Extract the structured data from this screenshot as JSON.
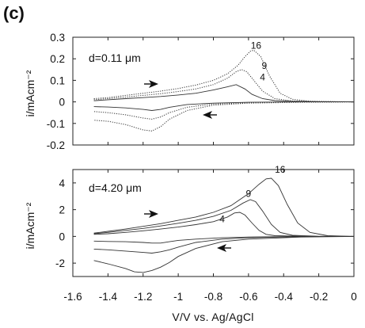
{
  "panel_label": "(c)",
  "annotation_arrows": "direction-arrows",
  "chart_data": [
    {
      "type": "line",
      "title": "",
      "annotation": "d=0.11 μm",
      "xlabel": "V/V  vs.  Ag/AgCl",
      "ylabel": "i/mAcm⁻²",
      "xlim": [
        -1.6,
        0
      ],
      "ylim": [
        -0.2,
        0.3
      ],
      "xticks": [
        "-1.6",
        "-1.4",
        "-1.2",
        "-1",
        "-0.8",
        "-0.6",
        "-0.4",
        "-0.2",
        "0"
      ],
      "yticks": [
        "-0.2",
        "-0.1",
        "0",
        "0.1",
        "0.2",
        "0.3"
      ],
      "grid": false,
      "series": [
        {
          "name": "4",
          "anodic": {
            "x": [
              -1.48,
              -1.4,
              -1.3,
              -1.2,
              -1.1,
              -1.0,
              -0.9,
              -0.8,
              -0.72,
              -0.67,
              -0.62,
              -0.58,
              -0.52,
              -0.45,
              -0.35,
              -0.2,
              0.0
            ],
            "y": [
              0.005,
              0.01,
              0.015,
              0.02,
              0.025,
              0.032,
              0.04,
              0.055,
              0.07,
              0.08,
              0.06,
              0.035,
              0.015,
              0.006,
              0.003,
              0.001,
              0.0
            ]
          },
          "cathodic": {
            "x": [
              0.0,
              -0.3,
              -0.6,
              -0.8,
              -0.95,
              -1.05,
              -1.1,
              -1.15,
              -1.2,
              -1.3,
              -1.4,
              -1.48
            ],
            "y": [
              0.0,
              0.0,
              -0.002,
              -0.006,
              -0.012,
              -0.025,
              -0.035,
              -0.04,
              -0.035,
              -0.028,
              -0.024,
              -0.022
            ]
          },
          "line": "solid"
        },
        {
          "name": "9",
          "anodic": {
            "x": [
              -1.48,
              -1.4,
              -1.3,
              -1.2,
              -1.1,
              -1.0,
              -0.9,
              -0.8,
              -0.72,
              -0.67,
              -0.64,
              -0.61,
              -0.57,
              -0.52,
              -0.45,
              -0.35,
              -0.2,
              0.0
            ],
            "y": [
              0.01,
              0.015,
              0.022,
              0.03,
              0.038,
              0.048,
              0.06,
              0.08,
              0.11,
              0.14,
              0.15,
              0.14,
              0.1,
              0.05,
              0.015,
              0.004,
              0.001,
              0.0
            ]
          },
          "cathodic": {
            "x": [
              0.0,
              -0.3,
              -0.6,
              -0.8,
              -0.95,
              -1.05,
              -1.1,
              -1.15,
              -1.2,
              -1.3,
              -1.4,
              -1.48
            ],
            "y": [
              0.0,
              -0.001,
              -0.004,
              -0.01,
              -0.025,
              -0.05,
              -0.07,
              -0.08,
              -0.075,
              -0.06,
              -0.05,
              -0.045
            ]
          },
          "line": "dotted"
        },
        {
          "name": "16",
          "anodic": {
            "x": [
              -1.48,
              -1.4,
              -1.3,
              -1.2,
              -1.1,
              -1.0,
              -0.9,
              -0.8,
              -0.72,
              -0.66,
              -0.62,
              -0.59,
              -0.57,
              -0.53,
              -0.48,
              -0.42,
              -0.35,
              -0.25,
              -0.1,
              0.0
            ],
            "y": [
              0.015,
              0.02,
              0.03,
              0.04,
              0.05,
              0.062,
              0.078,
              0.1,
              0.13,
              0.17,
              0.21,
              0.235,
              0.24,
              0.21,
              0.12,
              0.04,
              0.012,
              0.003,
              0.001,
              0.0
            ]
          },
          "cathodic": {
            "x": [
              0.0,
              -0.3,
              -0.6,
              -0.8,
              -0.95,
              -1.05,
              -1.1,
              -1.15,
              -1.2,
              -1.3,
              -1.4,
              -1.48
            ],
            "y": [
              0.0,
              -0.002,
              -0.006,
              -0.015,
              -0.04,
              -0.08,
              -0.115,
              -0.135,
              -0.13,
              -0.105,
              -0.09,
              -0.085
            ]
          },
          "line": "dotted"
        }
      ]
    },
    {
      "type": "line",
      "title": "",
      "annotation": "d=4.20 μm",
      "xlabel": "V/V  vs.  Ag/AgCl",
      "ylabel": "i/mAcm⁻²",
      "xlim": [
        -1.6,
        0
      ],
      "ylim": [
        -3,
        5
      ],
      "xticks": [
        "-1.6",
        "-1.4",
        "-1.2",
        "-1",
        "-0.8",
        "-0.6",
        "-0.4",
        "-0.2",
        "0"
      ],
      "yticks": [
        "-2",
        "0",
        "2",
        "4"
      ],
      "grid": false,
      "series": [
        {
          "name": "4",
          "anodic": {
            "x": [
              -1.48,
              -1.4,
              -1.3,
              -1.2,
              -1.1,
              -1.0,
              -0.9,
              -0.8,
              -0.72,
              -0.68,
              -0.65,
              -0.62,
              -0.58,
              -0.54,
              -0.5,
              -0.45,
              -0.35,
              -0.2,
              0.0
            ],
            "y": [
              0.15,
              0.2,
              0.3,
              0.42,
              0.55,
              0.7,
              0.88,
              1.1,
              1.45,
              1.75,
              1.8,
              1.6,
              1.0,
              0.45,
              0.15,
              0.05,
              0.02,
              0.0,
              0.0
            ]
          },
          "cathodic": {
            "x": [
              0.0,
              -0.3,
              -0.6,
              -0.75,
              -0.9,
              -1.0,
              -1.05,
              -1.1,
              -1.15,
              -1.2,
              -1.3,
              -1.4,
              -1.48
            ],
            "y": [
              0.0,
              0.0,
              -0.05,
              -0.1,
              -0.2,
              -0.3,
              -0.4,
              -0.5,
              -0.5,
              -0.45,
              -0.4,
              -0.38,
              -0.35
            ]
          },
          "line": "solid"
        },
        {
          "name": "9",
          "anodic": {
            "x": [
              -1.48,
              -1.4,
              -1.3,
              -1.2,
              -1.1,
              -1.0,
              -0.9,
              -0.8,
              -0.7,
              -0.63,
              -0.59,
              -0.56,
              -0.52,
              -0.47,
              -0.42,
              -0.35,
              -0.2,
              0.0
            ],
            "y": [
              0.2,
              0.3,
              0.45,
              0.6,
              0.78,
              0.98,
              1.2,
              1.5,
              1.95,
              2.5,
              2.75,
              2.6,
              1.9,
              0.9,
              0.3,
              0.08,
              0.01,
              0.0
            ]
          },
          "cathodic": {
            "x": [
              0.0,
              -0.3,
              -0.6,
              -0.75,
              -0.9,
              -1.0,
              -1.05,
              -1.1,
              -1.15,
              -1.2,
              -1.3,
              -1.4,
              -1.48
            ],
            "y": [
              0.0,
              -0.02,
              -0.1,
              -0.2,
              -0.45,
              -0.8,
              -1.0,
              -1.15,
              -1.25,
              -1.2,
              -1.1,
              -1.0,
              -0.95
            ]
          },
          "line": "solid"
        },
        {
          "name": "16",
          "anodic": {
            "x": [
              -1.48,
              -1.4,
              -1.3,
              -1.2,
              -1.1,
              -1.0,
              -0.9,
              -0.8,
              -0.7,
              -0.6,
              -0.54,
              -0.5,
              -0.47,
              -0.43,
              -0.38,
              -0.32,
              -0.25,
              -0.15,
              0.0
            ],
            "y": [
              0.25,
              0.38,
              0.55,
              0.75,
              0.95,
              1.2,
              1.45,
              1.8,
              2.3,
              3.2,
              3.9,
              4.3,
              4.35,
              3.8,
              2.4,
              1.0,
              0.3,
              0.05,
              0.0
            ]
          },
          "cathodic": {
            "x": [
              0.0,
              -0.3,
              -0.6,
              -0.75,
              -0.9,
              -1.0,
              -1.05,
              -1.1,
              -1.15,
              -1.2,
              -1.25,
              -1.3,
              -1.4,
              -1.48
            ],
            "y": [
              0.0,
              -0.05,
              -0.2,
              -0.4,
              -0.9,
              -1.5,
              -1.95,
              -2.3,
              -2.55,
              -2.7,
              -2.65,
              -2.4,
              -2.05,
              -1.8
            ]
          },
          "line": "solid"
        }
      ]
    }
  ]
}
